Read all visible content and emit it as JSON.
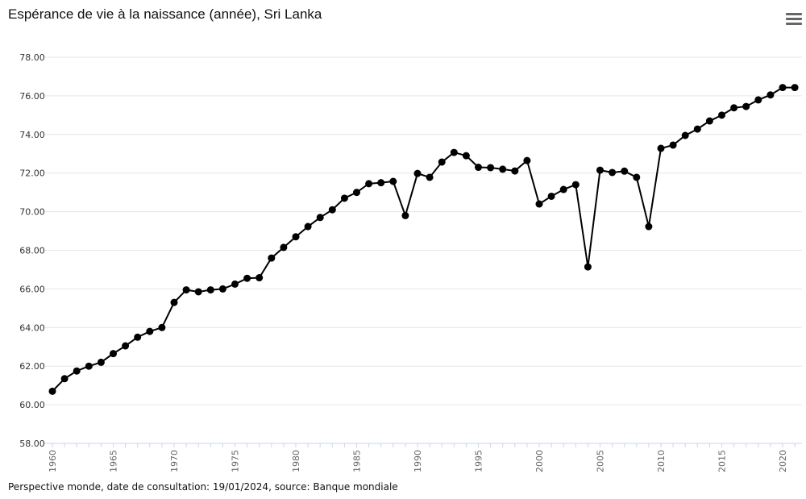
{
  "chart_data": {
    "type": "line",
    "title": "Espérance de vie à la naissance (année), Sri Lanka",
    "xlabel": "",
    "ylabel": "",
    "ylim": [
      58,
      78
    ],
    "yticks": [
      "58.00",
      "60.00",
      "62.00",
      "64.00",
      "66.00",
      "68.00",
      "70.00",
      "72.00",
      "74.00",
      "76.00",
      "78.00"
    ],
    "xticks": [
      "1960",
      "1965",
      "1970",
      "1975",
      "1980",
      "1985",
      "1990",
      "1995",
      "2000",
      "2005",
      "2010",
      "2015",
      "2020"
    ],
    "grid": true,
    "legend": "none",
    "series": [
      {
        "name": "Sri Lanka",
        "color": "#000000",
        "x": [
          1960,
          1961,
          1962,
          1963,
          1964,
          1965,
          1966,
          1967,
          1968,
          1969,
          1970,
          1971,
          1972,
          1973,
          1974,
          1975,
          1976,
          1977,
          1978,
          1979,
          1980,
          1981,
          1982,
          1983,
          1984,
          1985,
          1986,
          1987,
          1988,
          1989,
          1990,
          1991,
          1992,
          1993,
          1994,
          1995,
          1996,
          1997,
          1998,
          1999,
          2000,
          2001,
          2002,
          2003,
          2004,
          2005,
          2006,
          2007,
          2008,
          2009,
          2010,
          2011,
          2012,
          2013,
          2014,
          2015,
          2016,
          2017,
          2018,
          2019,
          2020,
          2021
        ],
        "values": [
          60.7,
          61.35,
          61.75,
          62.0,
          62.2,
          62.65,
          63.05,
          63.5,
          63.8,
          64.0,
          65.3,
          65.95,
          65.85,
          65.95,
          66.0,
          66.25,
          66.55,
          66.58,
          67.6,
          68.15,
          68.7,
          69.23,
          69.7,
          70.1,
          70.7,
          71.0,
          71.45,
          71.5,
          71.57,
          69.8,
          71.98,
          71.78,
          72.57,
          73.07,
          72.9,
          72.3,
          72.28,
          72.2,
          72.11,
          72.65,
          70.4,
          70.8,
          71.15,
          71.4,
          67.14,
          72.15,
          72.03,
          72.1,
          71.78,
          69.23,
          73.28,
          73.45,
          73.95,
          74.28,
          74.7,
          75.0,
          75.38,
          75.45,
          75.79,
          76.05,
          76.43,
          76.43
        ]
      }
    ]
  },
  "footer": "Perspective monde, date de consultation: 19/01/2024, source: Banque mondiale",
  "menu_icon": "hamburger-menu-icon"
}
